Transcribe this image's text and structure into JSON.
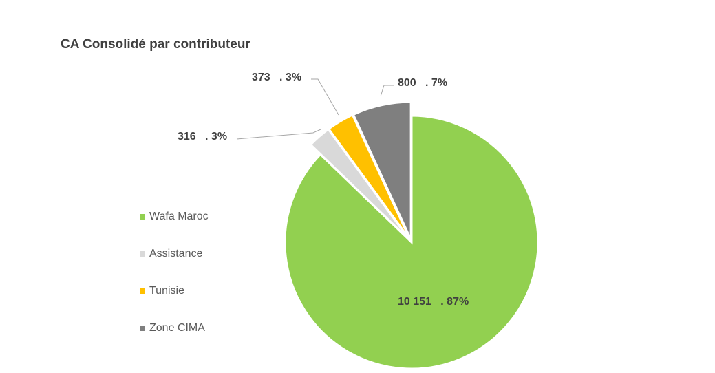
{
  "chart_data": {
    "type": "pie",
    "title": "CA Consolidé par contributeur",
    "slices": [
      {
        "name": "Wafa Maroc",
        "value": 10151,
        "label": "10 151   . 87%",
        "percent": 87,
        "color": "#92d050",
        "exploded": false
      },
      {
        "name": "Assistance",
        "value": 316,
        "label": "316   . 3%",
        "percent": 3,
        "color": "#d9d9d9",
        "exploded": true
      },
      {
        "name": "Tunisie",
        "value": 373,
        "label": "373   . 3%",
        "percent": 3,
        "color": "#ffc000",
        "exploded": true
      },
      {
        "name": "Zone CIMA",
        "value": 800,
        "label": "800   . 7%",
        "percent": 7,
        "color": "#7f7f7f",
        "exploded": true
      }
    ],
    "legend_position": "left"
  }
}
